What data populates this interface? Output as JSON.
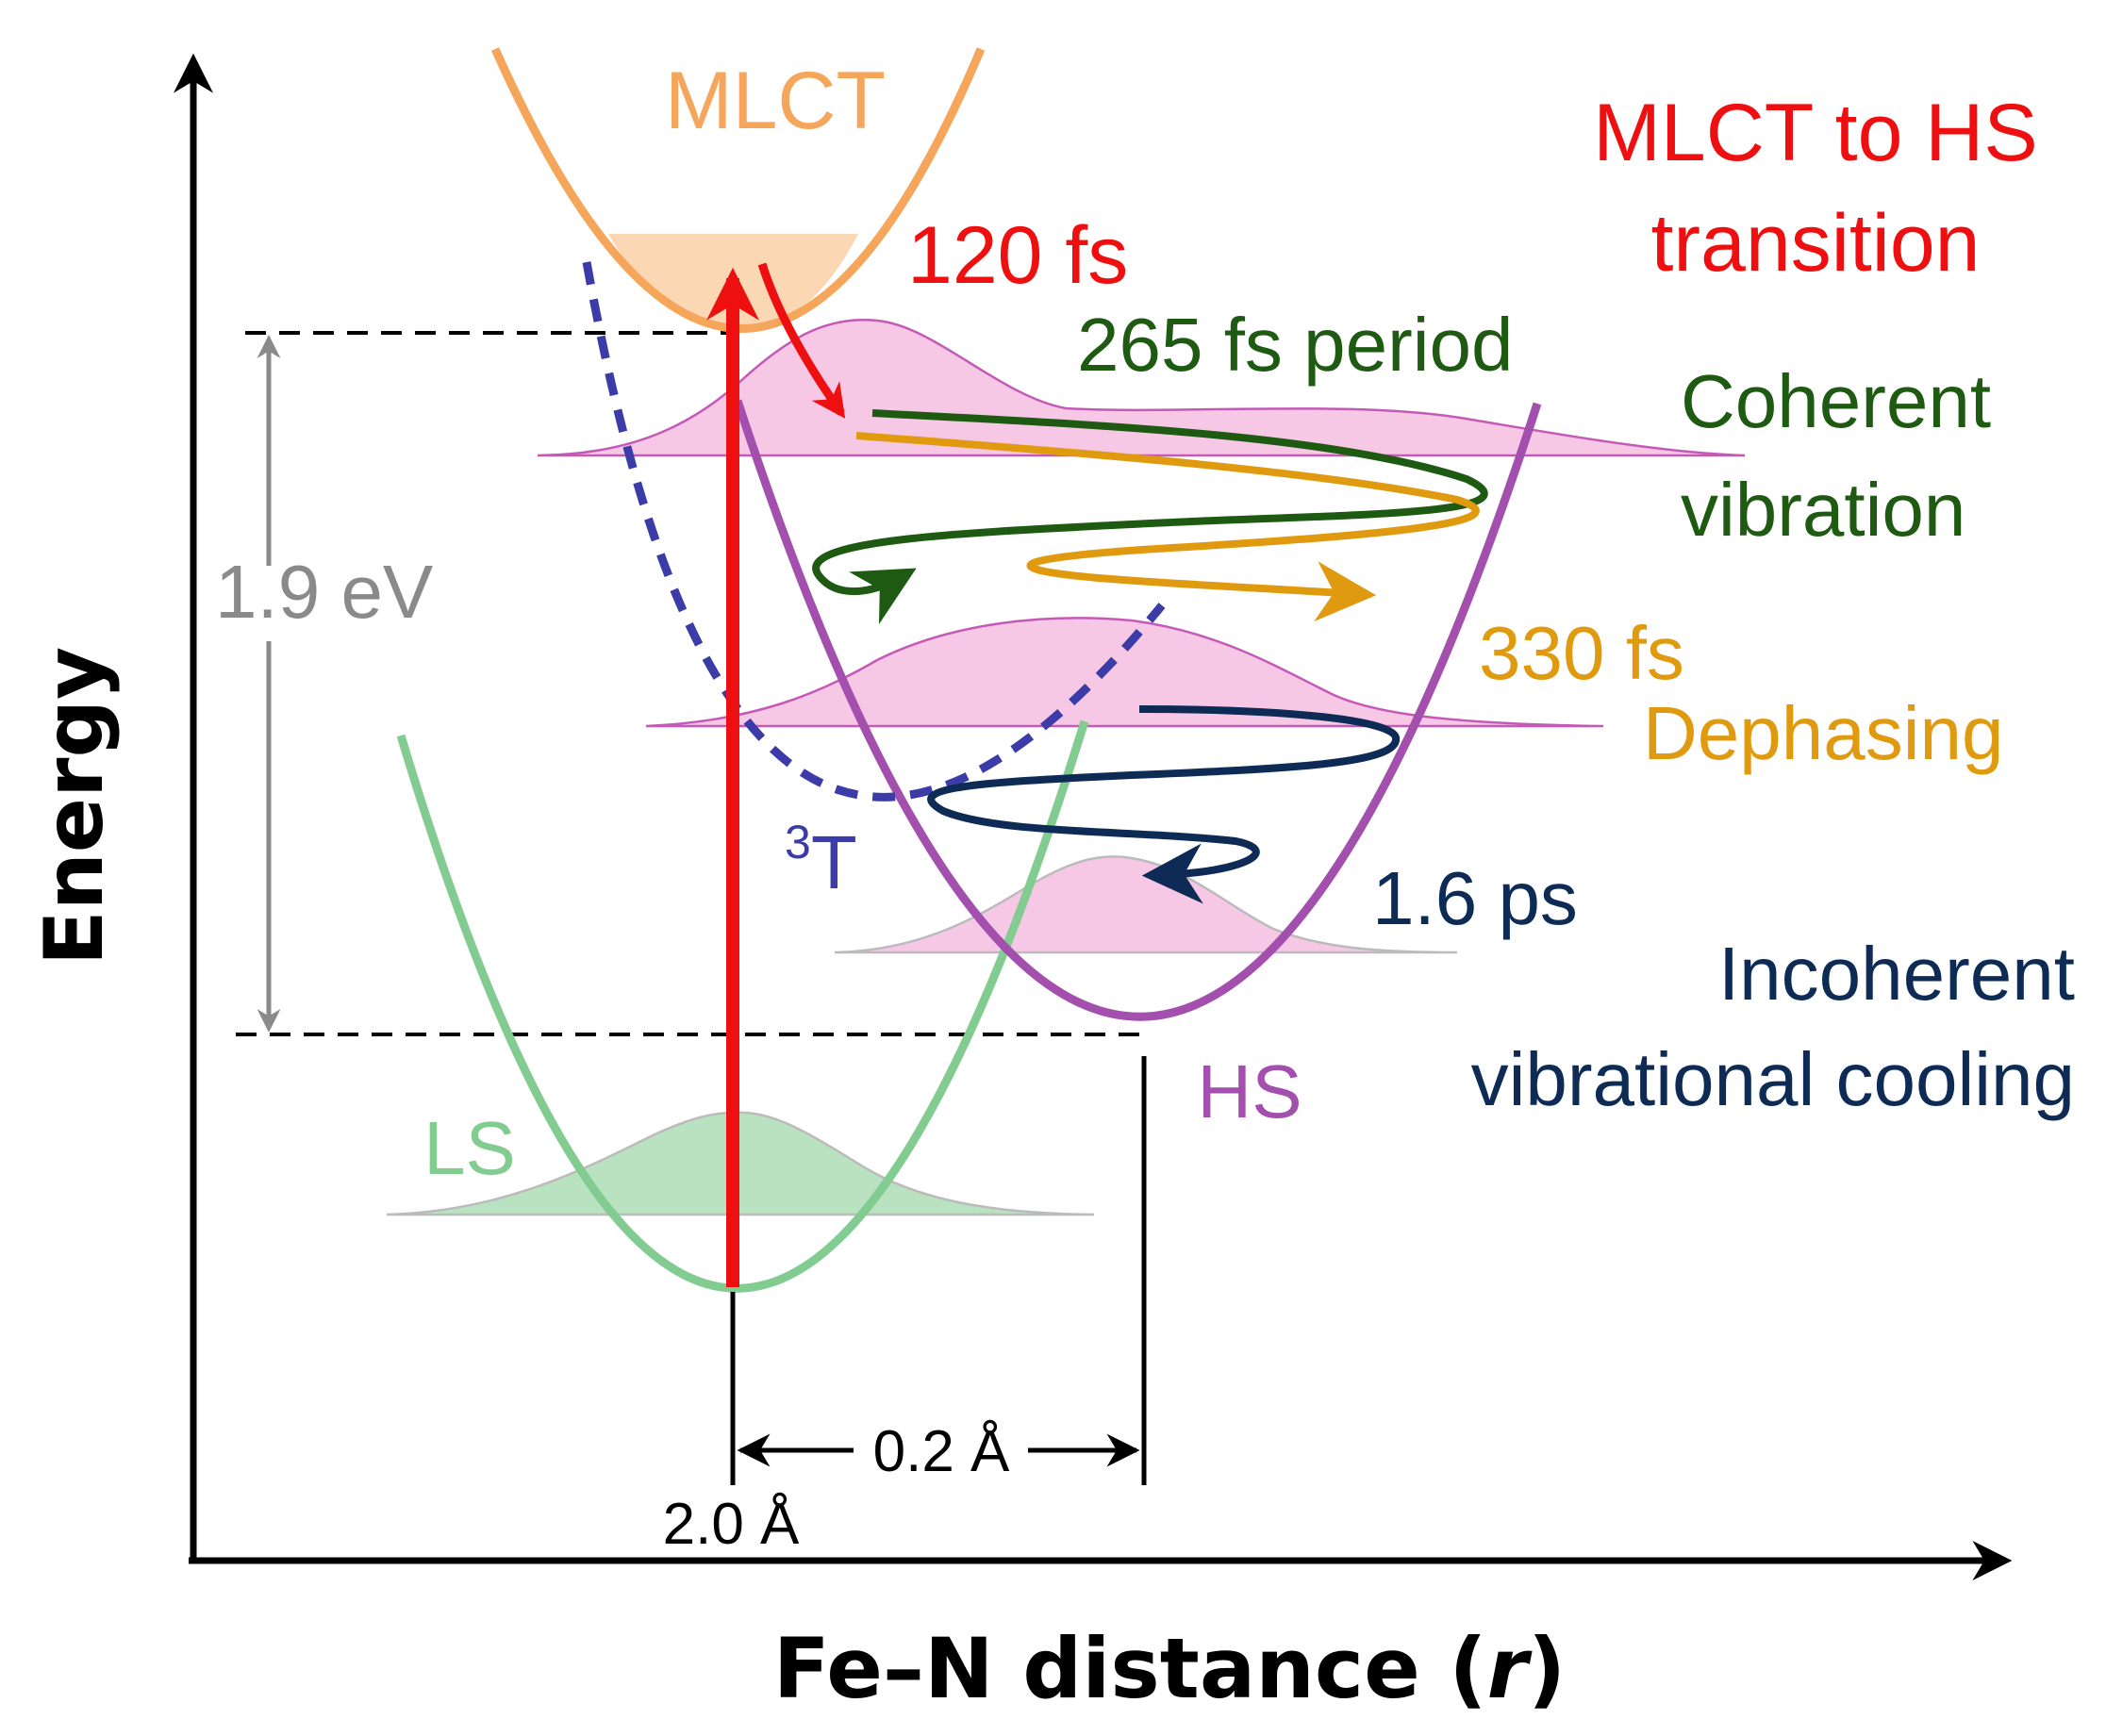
{
  "axes": {
    "y_label": "Energy",
    "x_label_prefix": "Fe–N distance (",
    "x_label_var": "r",
    "x_label_suffix": ")"
  },
  "states": {
    "mlct": "MLCT",
    "ls": "LS",
    "hs": "HS",
    "triplet_sup": "3",
    "triplet_main": "T"
  },
  "energy_gap": "1.9 eV",
  "distances": {
    "ls_bond": "2.0 Å",
    "delta_bond": "0.2 Å"
  },
  "annotations": {
    "transition_time": "120 fs",
    "transition_title_1": "MLCT to HS",
    "transition_title_2": "transition",
    "period": "265 fs period",
    "coherent_1": "Coherent",
    "coherent_2": "vibration",
    "dephasing_time": "330 fs",
    "dephasing": "Dephasing",
    "cooling_time": "1.6 ps",
    "cooling_1": "Incoherent",
    "cooling_2": "vibrational cooling"
  },
  "colors": {
    "mlct": "#f5a65b",
    "ls": "#82cc92",
    "hs": "#a24fae",
    "triplet": "#3c3ca8",
    "excitation": "#ee1010",
    "coherent": "#1f5a12",
    "dephasing": "#e09a10",
    "cooling": "#0d2b54",
    "gap": "#8a8a8a",
    "wavepacket": "#f7c8e6"
  }
}
